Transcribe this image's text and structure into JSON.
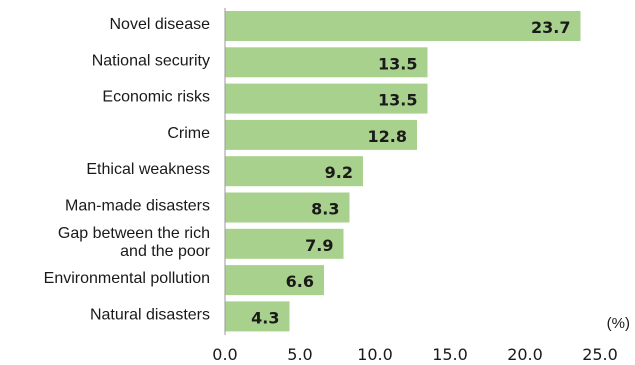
{
  "chart_data": {
    "type": "bar",
    "orientation": "horizontal",
    "title": "",
    "xlabel": "",
    "ylabel": "",
    "unit": "(%)",
    "categories": [
      "Novel disease",
      "National security",
      "Economic risks",
      "Crime",
      "Ethical weakness",
      "Man-made disasters",
      "Gap between the rich and the poor",
      "Environmental pollution",
      "Natural disasters"
    ],
    "category_lines": [
      [
        "Novel disease"
      ],
      [
        "National security"
      ],
      [
        "Economic risks"
      ],
      [
        "Crime"
      ],
      [
        "Ethical weakness"
      ],
      [
        "Man-made disasters"
      ],
      [
        "Gap between the rich",
        "and the poor"
      ],
      [
        "Environmental pollution"
      ],
      [
        "Natural disasters"
      ]
    ],
    "values": [
      23.7,
      13.5,
      13.5,
      12.8,
      9.2,
      8.3,
      7.9,
      6.6,
      4.3
    ],
    "value_labels": [
      "23.7",
      "13.5",
      "13.5",
      "12.8",
      "9.2",
      "8.3",
      "7.9",
      "6.6",
      "4.3"
    ],
    "xlim": [
      0,
      25
    ],
    "xticks": [
      0,
      5,
      10,
      15,
      20,
      25
    ],
    "xtick_labels": [
      "0.0",
      "5.0",
      "10.0",
      "15.0",
      "20.0",
      "25.0"
    ],
    "grid": false,
    "legend": "none",
    "colors": {
      "bar_fill": "#a9d18e",
      "axis_line": "#9a9a9a"
    }
  }
}
